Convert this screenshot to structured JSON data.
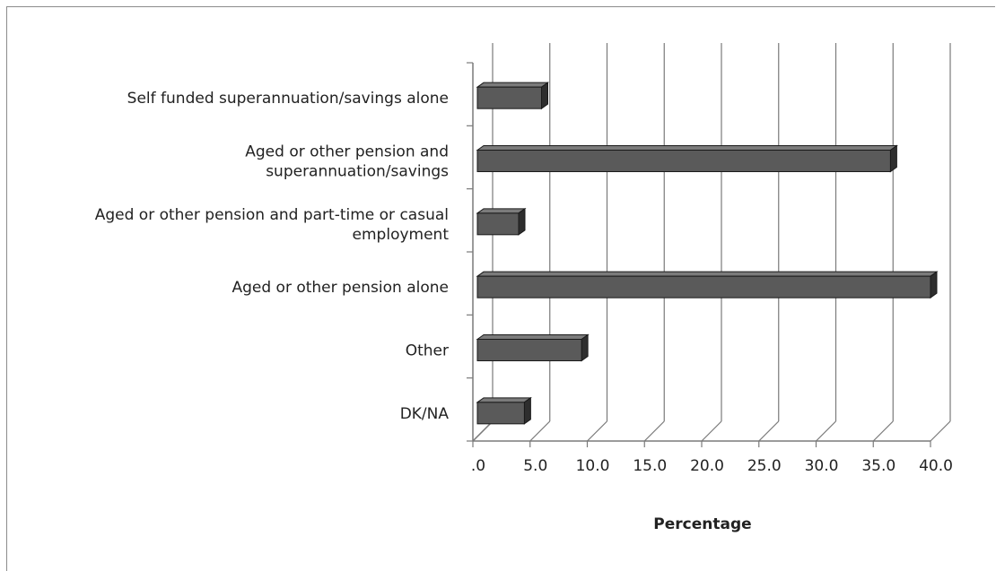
{
  "chart_data": {
    "type": "bar",
    "orientation": "horizontal",
    "style": "3d",
    "title": "",
    "xlabel": "Percentage",
    "ylabel": "",
    "xlim": [
      0,
      40
    ],
    "tick_step": 5,
    "tick_labels": [
      ".0",
      "5.0",
      "10.0",
      "15.0",
      "20.0",
      "25.0",
      "30.0",
      "35.0",
      "40.0"
    ],
    "grid": true,
    "legend": "none",
    "categories": [
      [
        "Self funded superannuation/savings alone"
      ],
      [
        "Aged or other pension and",
        "superannuation/savings"
      ],
      [
        "Aged or other pension and part-time or casual",
        "employment"
      ],
      [
        "Aged or other pension alone"
      ],
      [
        "Other"
      ],
      [
        "DK/NA"
      ]
    ],
    "values": [
      6.0,
      36.5,
      4.0,
      40.0,
      9.5,
      4.5
    ],
    "colors": {
      "bar_front": "#5a5a5a",
      "bar_top": "#7b7b7b",
      "bar_side": "#2e2e2e",
      "bar_outline": "#1a1a1a",
      "grid": "#7a7a7a"
    }
  }
}
